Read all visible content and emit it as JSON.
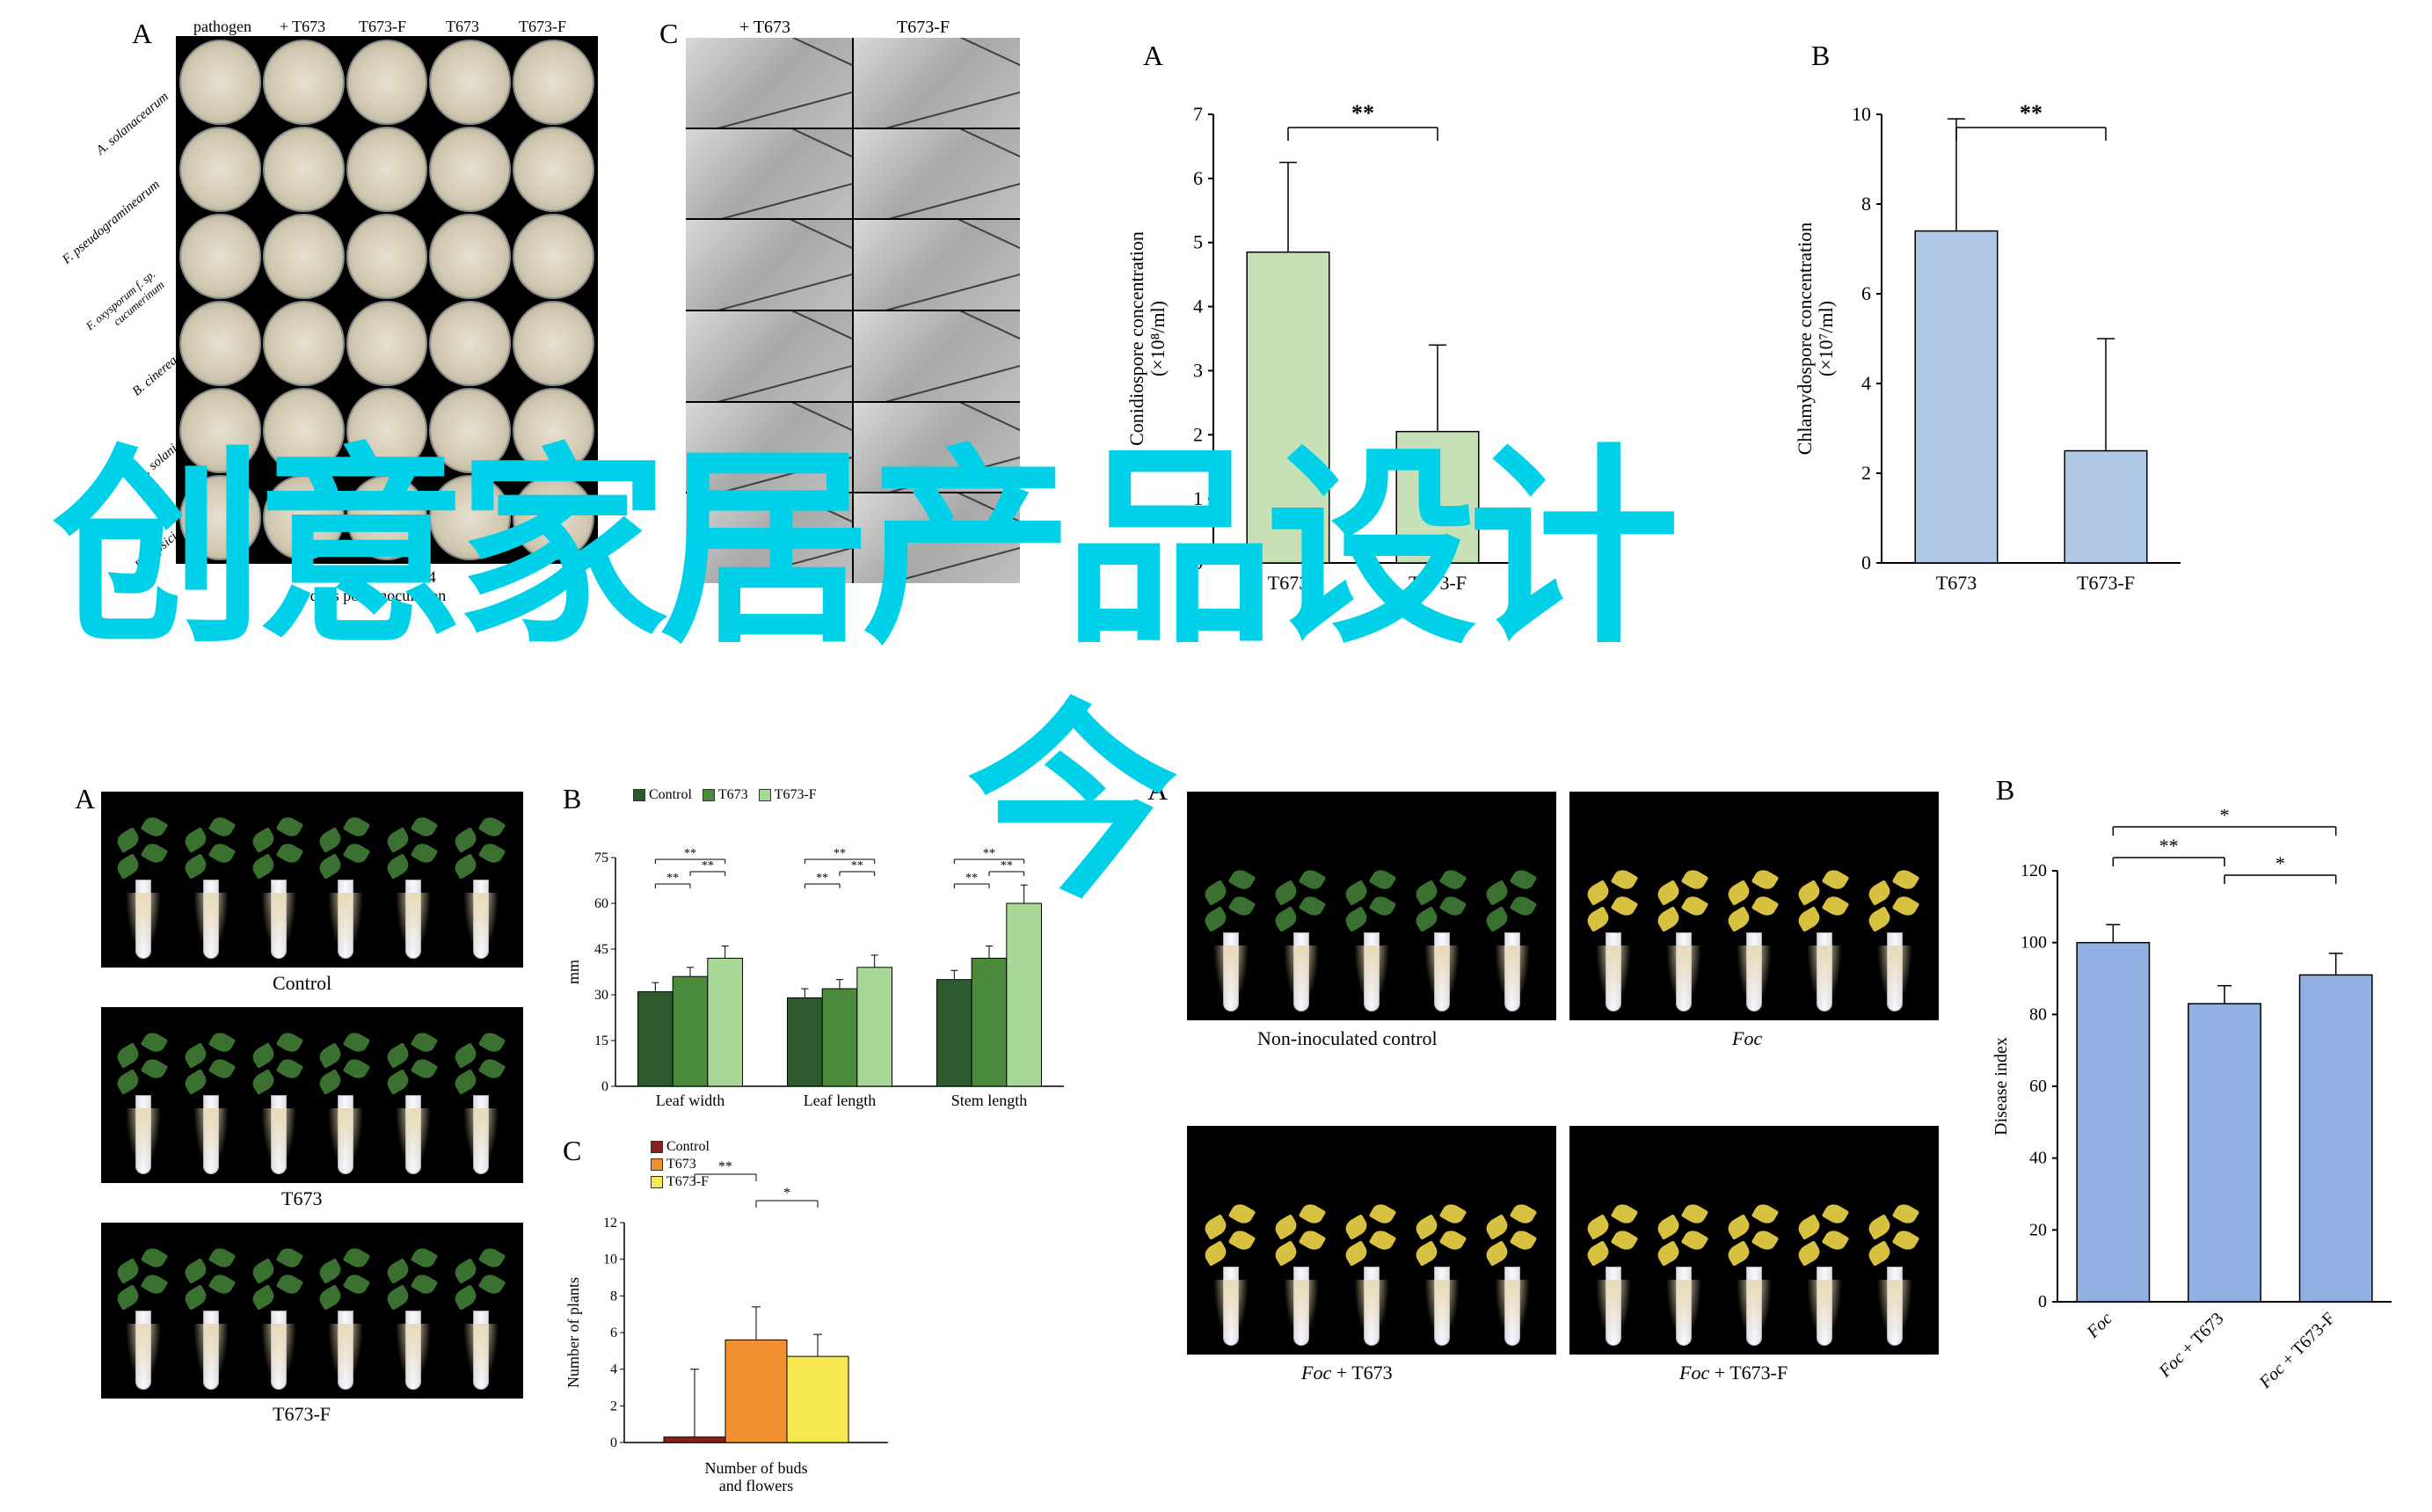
{
  "overlay_text_1": "创意家居产品设计",
  "overlay_text_2": "今",
  "panels": {
    "petri_A": "A",
    "micro_C": "C",
    "barA": "A",
    "barB": "B",
    "plant_lower_A": "A",
    "plant_lower_B": "B",
    "plant_lower_C": "C",
    "disease_A": "A",
    "disease_B": "B"
  },
  "petri": {
    "columns": [
      "pathogen",
      "+ T673",
      "T673-F",
      "T673",
      "T673-F"
    ],
    "rows": [
      "A. solanacearum",
      "F. pseudograminearum",
      "F. oxysporum f. sp. cucumerinum",
      "B. cinerea",
      "R. solani",
      "P. capsici"
    ],
    "xaxis_label": "days post-inoculation",
    "xaxis_ticks": [
      "7",
      "14"
    ]
  },
  "micro": {
    "columns": [
      "+ T673",
      "T673-F"
    ]
  },
  "chartA": {
    "type": "bar",
    "ylabel": "Conidiospore concentration\n(×10⁸/ml)",
    "categories": [
      "T673",
      "T673-F"
    ],
    "values": [
      4.85,
      2.05
    ],
    "errors": [
      1.4,
      1.35
    ],
    "ylim": [
      0,
      7
    ],
    "ytick_step": 1,
    "bar_color": "#c8e0b8",
    "sig_label": "**",
    "label_fontsize": 22,
    "axis_fontsize": 22
  },
  "chartB": {
    "type": "bar",
    "ylabel": "Chlamydospore concentration\n(×10⁷/ml)",
    "categories": [
      "T673",
      "T673-F"
    ],
    "values": [
      7.4,
      2.5
    ],
    "errors": [
      2.5,
      2.5
    ],
    "ylim": [
      0,
      10
    ],
    "ytick_step": 2,
    "bar_color": "#b0c8e8",
    "sig_label": "**",
    "label_fontsize": 22,
    "axis_fontsize": 22
  },
  "lower_plants": {
    "captions": [
      "Control",
      "T673",
      "T673-F"
    ]
  },
  "chartLowerB": {
    "type": "grouped-bar",
    "ylabel": "mm",
    "categories": [
      "Leaf width",
      "Leaf length",
      "Stem length"
    ],
    "groups": [
      "Control",
      "T673",
      "T673-F"
    ],
    "values": [
      [
        31,
        36,
        42
      ],
      [
        29,
        32,
        39
      ],
      [
        35,
        42,
        60
      ]
    ],
    "errors": [
      [
        3,
        3,
        4
      ],
      [
        3,
        3,
        4
      ],
      [
        3,
        4,
        6
      ]
    ],
    "ylim": [
      0,
      75
    ],
    "ytick_step": 15,
    "colors": [
      "#2d5a2d",
      "#4a8a3a",
      "#a8d898"
    ],
    "sig_brackets": [
      {
        "group": 0,
        "pairs": [
          [
            0,
            1,
            "**"
          ],
          [
            1,
            2,
            "**"
          ],
          [
            0,
            2,
            "**"
          ]
        ]
      },
      {
        "group": 1,
        "pairs": [
          [
            0,
            1,
            "**"
          ],
          [
            1,
            2,
            "**"
          ],
          [
            0,
            2,
            "**"
          ]
        ]
      },
      {
        "group": 2,
        "pairs": [
          [
            0,
            1,
            "**"
          ],
          [
            1,
            2,
            "**"
          ],
          [
            0,
            2,
            "**"
          ]
        ]
      }
    ],
    "label_fontsize": 18
  },
  "chartLowerC": {
    "type": "bar",
    "ylabel": "Number of plants",
    "xlabel": "Number of buds and flowers",
    "categories": [
      ""
    ],
    "groups": [
      "Control",
      "T673",
      "T673-F"
    ],
    "values": [
      0.3,
      5.6,
      4.7
    ],
    "errors": [
      3.7,
      1.8,
      1.2
    ],
    "ylim": [
      0,
      12
    ],
    "ytick_step": 2,
    "colors": [
      "#8b2020",
      "#f09030",
      "#f8e850"
    ],
    "sig": [
      [
        "Control",
        "T673",
        "**"
      ],
      [
        "T673",
        "T673-F",
        "*"
      ]
    ],
    "label_fontsize": 18
  },
  "disease_plants": {
    "captions": [
      "Non-inoculated control",
      "Foc",
      "Foc + T673",
      "Foc + T673-F"
    ],
    "caption_styles": [
      "plain",
      "italic",
      "italic-plain",
      "italic-plain"
    ]
  },
  "chartDiseaseB": {
    "type": "bar",
    "ylabel": "Disease index",
    "categories": [
      "Foc",
      "Foc + T673",
      "Foc + T673-F"
    ],
    "values": [
      100,
      83,
      91
    ],
    "errors": [
      5,
      5,
      6
    ],
    "ylim": [
      0,
      120
    ],
    "ytick_step": 20,
    "bar_color": "#8fb0e0",
    "sig": [
      [
        "Foc",
        "Foc + T673",
        "**"
      ],
      [
        "Foc + T673",
        "Foc + T673-F",
        "*"
      ],
      [
        "Foc",
        "Foc + T673-F",
        "*"
      ]
    ],
    "label_fontsize": 20
  },
  "colors": {
    "overlay": "#00d0e8",
    "axis": "#000000",
    "background": "#ffffff"
  }
}
